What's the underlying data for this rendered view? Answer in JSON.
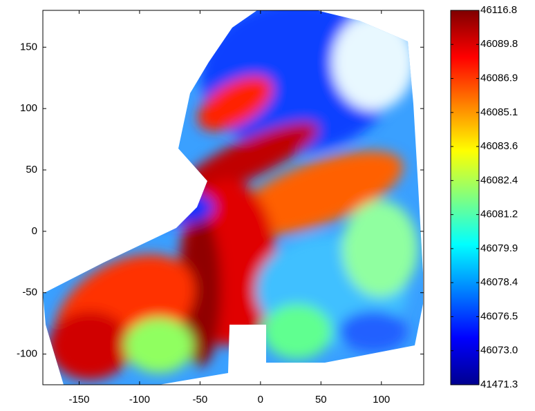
{
  "chart_data": {
    "type": "heatmap",
    "xlim": [
      -180,
      135
    ],
    "xticks": [
      -150,
      -100,
      -50,
      0,
      50,
      100
    ],
    "ylim": [
      -125,
      180
    ],
    "yticks": [
      -100,
      -50,
      0,
      50,
      100,
      150
    ],
    "colorbar": {
      "colors": [
        "#00008f",
        "#0000ff",
        "#0080ff",
        "#00ffff",
        "#80ff80",
        "#ffff00",
        "#ff8000",
        "#ff0000",
        "#800000"
      ],
      "ticks": [
        41471.3,
        {
          "value": 46073,
          "label": "46073.0"
        },
        46076.5,
        46078.4,
        46079.9,
        46081.2,
        46082.4,
        46083.6,
        46085.1,
        46086.9,
        46089.8,
        46116.8
      ]
    }
  }
}
